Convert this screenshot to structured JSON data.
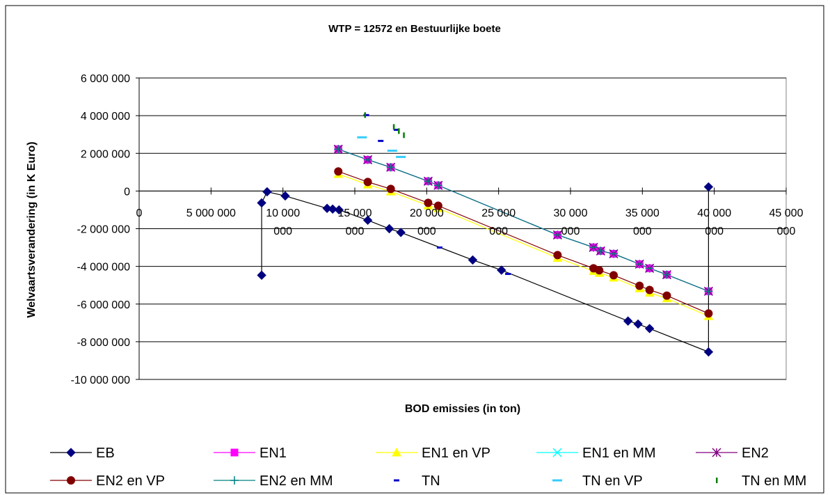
{
  "chart_data": {
    "type": "scatter",
    "title": "WTP = 12572 en Bestuurlijke boete",
    "x_label": "BOD emissies (in ton)",
    "y_label": "Welvaartsverandering (in K Euro)",
    "xlim": [
      0,
      45000000
    ],
    "ylim": [
      -10000000,
      6000000
    ],
    "xticks": [
      0,
      {
        "value": 5000000,
        "label": "5 000 000"
      },
      {
        "value": 10000000,
        "label": "10 000 000"
      },
      {
        "value": 15000000,
        "label": "15 000 000"
      },
      {
        "value": 20000000,
        "label": "20 000 000"
      },
      {
        "value": 25000000,
        "label": "25 000 000"
      },
      {
        "value": 30000000,
        "label": "30 000 000"
      },
      {
        "value": 35000000,
        "label": "35 000 000"
      },
      {
        "value": 40000000,
        "label": "40 000 000"
      },
      {
        "value": 45000000,
        "label": "45 000 000"
      }
    ],
    "yticks": [
      {
        "value": 6000000,
        "label": "6 000 000"
      },
      {
        "value": 4000000,
        "label": "4 000 000"
      },
      {
        "value": 2000000,
        "label": "2 000 000"
      },
      0,
      {
        "value": -2000000,
        "label": "-2 000 000"
      },
      {
        "value": -4000000,
        "label": "-4 000 000"
      },
      {
        "value": -6000000,
        "label": "-6 000 000"
      },
      {
        "value": -8000000,
        "label": "-8 000 000"
      },
      {
        "value": -10000000,
        "label": "-10 000 000"
      }
    ],
    "grid": true,
    "legend": "bottom",
    "series": [
      {
        "name": "EB",
        "color": "#000080",
        "marker": "diamond",
        "line": true,
        "x": [
          8520000,
          8520000,
          8900000,
          10160000,
          13070000,
          13460000,
          13900000,
          15900000,
          17400000,
          18200000,
          23200000,
          25200000,
          34000000,
          34700000,
          35500000,
          39600000,
          39600000
        ],
        "values": [
          -4470000,
          -630000,
          -40000,
          -260000,
          -920000,
          -960000,
          -1000000,
          -1550000,
          -2000000,
          -2200000,
          -3660000,
          -4200000,
          -6900000,
          -7060000,
          -7300000,
          -8540000,
          220000
        ]
      },
      {
        "name": "EN1",
        "color": "#ff00ff",
        "marker": "square",
        "line": true,
        "x": [
          13850000,
          15900000,
          17500000,
          20100000,
          20800000,
          29100000,
          31600000,
          32100000,
          33000000,
          34800000,
          35500000,
          36700000,
          39600000
        ],
        "values": [
          2220000,
          1660000,
          1260000,
          520000,
          300000,
          -2330000,
          -2990000,
          -3180000,
          -3330000,
          -3880000,
          -4100000,
          -4440000,
          -5320000
        ]
      },
      {
        "name": "EN1 en VP",
        "color": "#ffff00",
        "marker": "triangle",
        "line": true,
        "x": [
          13850000,
          15900000,
          17500000,
          20100000,
          20800000,
          29100000,
          31600000,
          32000000,
          33000000,
          34800000,
          35500000,
          36700000,
          39600000
        ],
        "values": [
          900000,
          340000,
          -30000,
          -770000,
          -920000,
          -3550000,
          -4250000,
          -4350000,
          -4600000,
          -5170000,
          -5400000,
          -5700000,
          -6640000
        ]
      },
      {
        "name": "EN1 en MM",
        "color": "#00ffff",
        "marker": "x",
        "line": true,
        "x": [
          13850000,
          15900000,
          17500000,
          20100000,
          20800000,
          29100000,
          31600000,
          32100000,
          33000000,
          34800000,
          35500000,
          36700000,
          39600000
        ],
        "values": [
          2220000,
          1660000,
          1260000,
          520000,
          300000,
          -2330000,
          -2990000,
          -3180000,
          -3330000,
          -3880000,
          -4100000,
          -4440000,
          -5320000
        ]
      },
      {
        "name": "EN2",
        "color": "#800080",
        "marker": "star",
        "line": true,
        "x": [
          13850000,
          15900000,
          17500000,
          20100000,
          20800000,
          29100000,
          31600000,
          32100000,
          33000000,
          34800000,
          35500000,
          36700000,
          39600000
        ],
        "values": [
          2220000,
          1660000,
          1260000,
          520000,
          300000,
          -2330000,
          -2990000,
          -3180000,
          -3330000,
          -3880000,
          -4100000,
          -4440000,
          -5320000
        ]
      },
      {
        "name": "EN2 en VP",
        "color": "#800000",
        "marker": "circle",
        "line": true,
        "x": [
          13850000,
          15900000,
          17500000,
          20100000,
          20800000,
          29100000,
          31600000,
          32000000,
          33000000,
          34800000,
          35500000,
          36700000,
          39600000
        ],
        "values": [
          1040000,
          480000,
          110000,
          -630000,
          -780000,
          -3400000,
          -4100000,
          -4210000,
          -4470000,
          -5030000,
          -5250000,
          -5550000,
          -6500000
        ]
      },
      {
        "name": "EN2 en MM",
        "color": "#008080",
        "marker": "plus",
        "line": true,
        "x": [
          13850000,
          15900000,
          17500000,
          20100000,
          20800000,
          29100000,
          31600000,
          32100000,
          33000000,
          34800000,
          35500000,
          36700000,
          39600000
        ],
        "values": [
          2220000,
          1660000,
          1260000,
          520000,
          300000,
          -2330000,
          -2990000,
          -3180000,
          -3330000,
          -3880000,
          -4100000,
          -4440000,
          -5320000
        ]
      },
      {
        "name": "TN",
        "color": "#0000cc",
        "marker": "dash",
        "line": false,
        "x": [
          15800000,
          16800000,
          17900000,
          20900000,
          25650000
        ],
        "values": [
          4030000,
          2660000,
          3250000,
          -3000000,
          -4400000
        ]
      },
      {
        "name": "TN en VP",
        "color": "#33ccff",
        "marker": "wdash",
        "line": false,
        "x": [
          15500000,
          17600000,
          18200000
        ],
        "values": [
          2850000,
          2140000,
          1810000
        ]
      },
      {
        "name": "TN en MM",
        "color": "#008000",
        "marker": "vbar",
        "line": false,
        "x": [
          15700000,
          17700000,
          18050000,
          18400000
        ],
        "values": [
          4030000,
          3400000,
          3180000,
          2960000
        ]
      }
    ]
  }
}
